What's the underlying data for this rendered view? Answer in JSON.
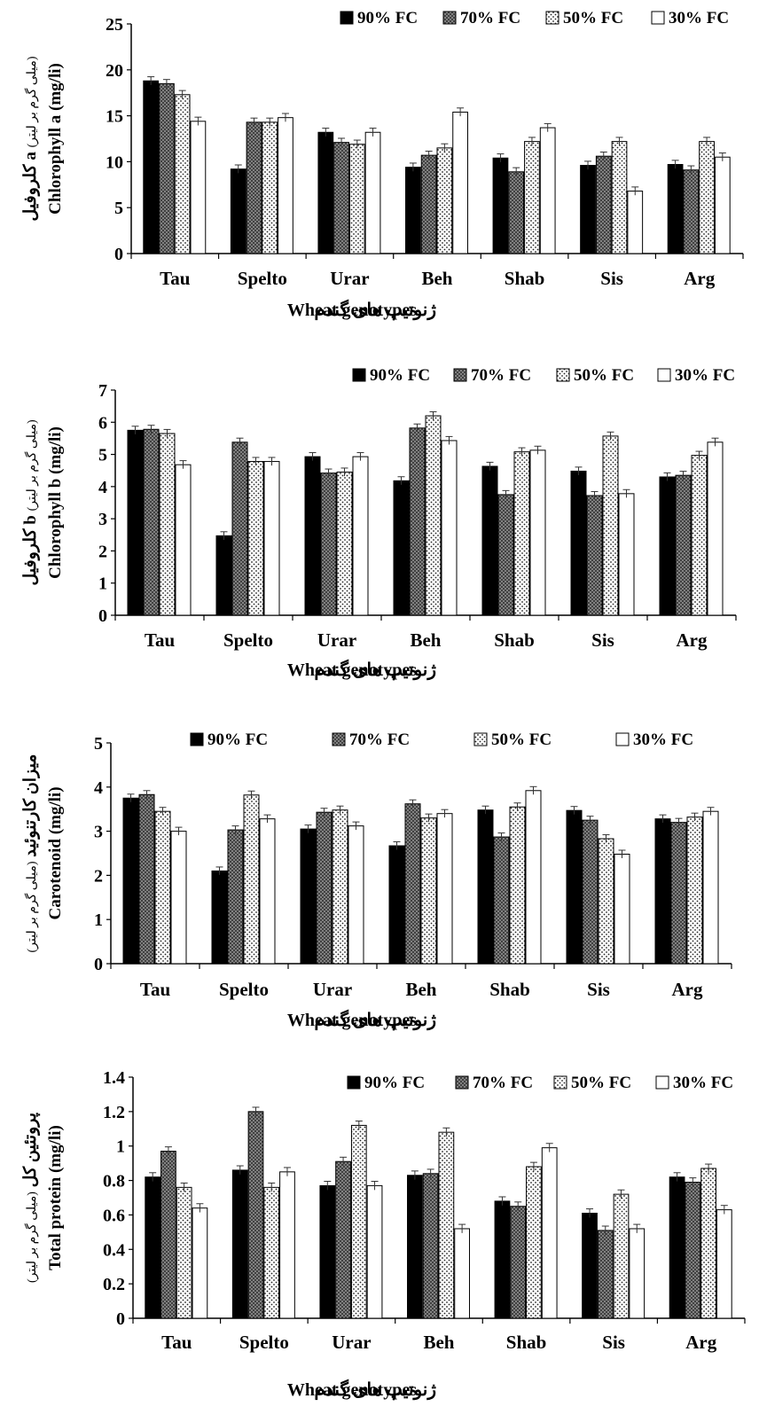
{
  "colors": {
    "series_fill": [
      "#000000",
      "#8c8c8c",
      "#ffffff",
      "#ffffff"
    ],
    "series_pattern": [
      "solid",
      "crosshatch",
      "dots",
      "none"
    ]
  },
  "chart_data": [
    {
      "type": "bar",
      "categories": [
        "Tau",
        "Spelto",
        "Urar",
        "Beh",
        "Shab",
        "Sis",
        "Arg"
      ],
      "series": [
        {
          "name": "90% FC",
          "values": [
            18.8,
            9.2,
            13.2,
            9.4,
            10.4,
            9.6,
            9.7
          ]
        },
        {
          "name": "70% FC",
          "values": [
            18.5,
            14.3,
            12.1,
            10.7,
            8.9,
            10.6,
            9.1
          ]
        },
        {
          "name": "50% FC",
          "values": [
            17.3,
            14.3,
            11.9,
            11.5,
            12.2,
            12.2,
            12.2
          ]
        },
        {
          "name": "30% FC",
          "values": [
            14.4,
            14.8,
            13.2,
            15.4,
            13.7,
            6.8,
            10.5
          ]
        }
      ],
      "error_bars": "shown",
      "ylim": [
        0,
        25
      ],
      "yticks": [
        "0",
        "5",
        "10",
        "15",
        "20",
        "25"
      ],
      "ylabel_fa": "کلروفیل a",
      "ylabel_fa_small": "(میلی گرم بر لیتر)",
      "ylabel_en": "Chlorophyll a (mg/li)",
      "xlabel_en": "Wheat genotypes",
      "xlabel_fa": "ژنوتیپ های گندم",
      "legend": [
        "90% FC",
        "70% FC",
        "50% FC",
        "30% FC"
      ],
      "legend_position": "top"
    },
    {
      "type": "bar",
      "categories": [
        "Tau",
        "Spelto",
        "Urar",
        "Beh",
        "Shab",
        "Sis",
        "Arg"
      ],
      "series": [
        {
          "name": "90% FC",
          "values": [
            5.75,
            2.47,
            4.93,
            4.18,
            4.63,
            4.48,
            4.3
          ]
        },
        {
          "name": "70% FC",
          "values": [
            5.78,
            5.38,
            4.42,
            5.82,
            3.75,
            3.72,
            4.35
          ]
        },
        {
          "name": "50% FC",
          "values": [
            5.65,
            4.78,
            4.45,
            6.2,
            5.08,
            5.57,
            4.97
          ]
        },
        {
          "name": "30% FC",
          "values": [
            4.68,
            4.78,
            4.93,
            5.43,
            5.13,
            3.78,
            5.38
          ]
        }
      ],
      "error_bars": "shown",
      "ylim": [
        0,
        7
      ],
      "yticks": [
        "0",
        "1",
        "2",
        "3",
        "4",
        "5",
        "6",
        "7"
      ],
      "ylabel_fa": "کلروفیل b",
      "ylabel_fa_small": "(میلی گرم بر لیتر)",
      "ylabel_en": "Chlorophyll b (mg/li)",
      "xlabel_en": "Wheat genotypes",
      "xlabel_fa": "ژنوتیپ های گندم",
      "legend": [
        "90% FC",
        "70% FC",
        "50% FC",
        "30% FC"
      ],
      "legend_position": "top"
    },
    {
      "type": "bar",
      "categories": [
        "Tau",
        "Spelto",
        "Urar",
        "Beh",
        "Shab",
        "Sis",
        "Arg"
      ],
      "series": [
        {
          "name": "90% FC",
          "values": [
            3.75,
            2.1,
            3.05,
            2.67,
            3.48,
            3.47,
            3.28
          ]
        },
        {
          "name": "70% FC",
          "values": [
            3.83,
            3.03,
            3.43,
            3.62,
            2.87,
            3.25,
            3.2
          ]
        },
        {
          "name": "50% FC",
          "values": [
            3.45,
            3.82,
            3.48,
            3.3,
            3.55,
            2.83,
            3.32
          ]
        },
        {
          "name": "30% FC",
          "values": [
            3.0,
            3.28,
            3.12,
            3.4,
            3.92,
            2.48,
            3.45
          ]
        }
      ],
      "error_bars": "shown",
      "ylim": [
        0,
        5
      ],
      "yticks": [
        "0",
        "1",
        "2",
        "3",
        "4",
        "5"
      ],
      "ylabel_fa": "میزان کارتنوئید",
      "ylabel_fa_small": "(میلی گرم بر لیتر)",
      "ylabel_en": "Carotenoid (mg/li)",
      "xlabel_en": "Wheat genotypes",
      "xlabel_fa": "ژنوتیپ های گندم",
      "legend": [
        "90% FC",
        "70% FC",
        "50% FC",
        "30% FC"
      ],
      "legend_position": "top"
    },
    {
      "type": "bar",
      "categories": [
        "Tau",
        "Spelto",
        "Urar",
        "Beh",
        "Shab",
        "Sis",
        "Arg"
      ],
      "series": [
        {
          "name": "90% FC",
          "values": [
            0.82,
            0.86,
            0.77,
            0.83,
            0.68,
            0.61,
            0.82
          ]
        },
        {
          "name": "70% FC",
          "values": [
            0.97,
            1.2,
            0.91,
            0.84,
            0.65,
            0.51,
            0.79
          ]
        },
        {
          "name": "50% FC",
          "values": [
            0.76,
            0.76,
            1.12,
            1.08,
            0.88,
            0.72,
            0.87
          ]
        },
        {
          "name": "30% FC",
          "values": [
            0.64,
            0.85,
            0.77,
            0.52,
            0.99,
            0.52,
            0.63
          ]
        }
      ],
      "error_bars": "shown",
      "ylim": [
        0,
        1.4
      ],
      "yticks": [
        "0",
        "0.2",
        "0.4",
        "0.6",
        "0.8",
        "1",
        "1.2",
        "1.4"
      ],
      "ylabel_fa": "پروتئین کل",
      "ylabel_fa_small": "(میلی گرم بر لیتر)",
      "ylabel_en": "Total protein (mg/li)",
      "xlabel_en": "Wheat genotypes",
      "xlabel_fa": "ژنوتیپ های گندم",
      "legend": [
        "90% FC",
        "70% FC",
        "50% FC",
        "30% FC"
      ],
      "legend_position": "top"
    }
  ]
}
